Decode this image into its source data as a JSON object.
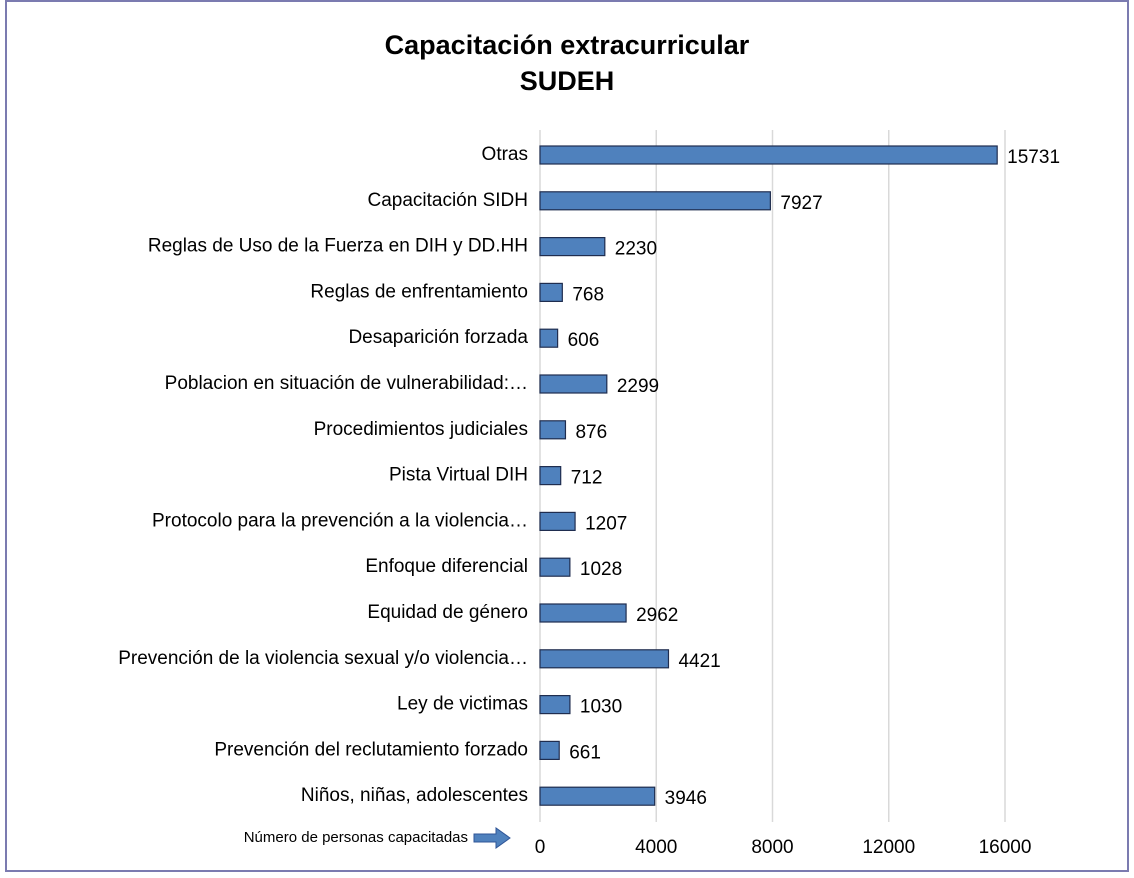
{
  "chart_data": {
    "type": "bar",
    "orientation": "horizontal",
    "title": [
      "Capacitación extracurricular",
      "SUDEH"
    ],
    "x_axis_label": "Número de personas capacitadas",
    "categories": [
      "Otras",
      "Capacitación SIDH",
      "Reglas de Uso de la Fuerza en DIH y DD.HH",
      "Reglas de enfrentamiento",
      "Desaparición forzada",
      "Poblacion en situación de vulnerabilidad:…",
      "Procedimientos judiciales",
      "Pista Virtual DIH",
      "Protocolo para la prevención a la violencia…",
      "Enfoque diferencial",
      "Equidad de género",
      "Prevención de la violencia sexual y/o violencia…",
      "Ley de victimas",
      "Prevención del reclutamiento forzado",
      "Niños, niñas, adolescentes"
    ],
    "values": [
      15731,
      7927,
      2230,
      768,
      606,
      2299,
      876,
      712,
      1207,
      1028,
      2962,
      4421,
      1030,
      661,
      3946
    ],
    "color": "#4f81bd",
    "xlim": [
      0,
      16000
    ],
    "xticks": [
      0,
      4000,
      8000,
      12000,
      16000
    ],
    "grid": true
  }
}
